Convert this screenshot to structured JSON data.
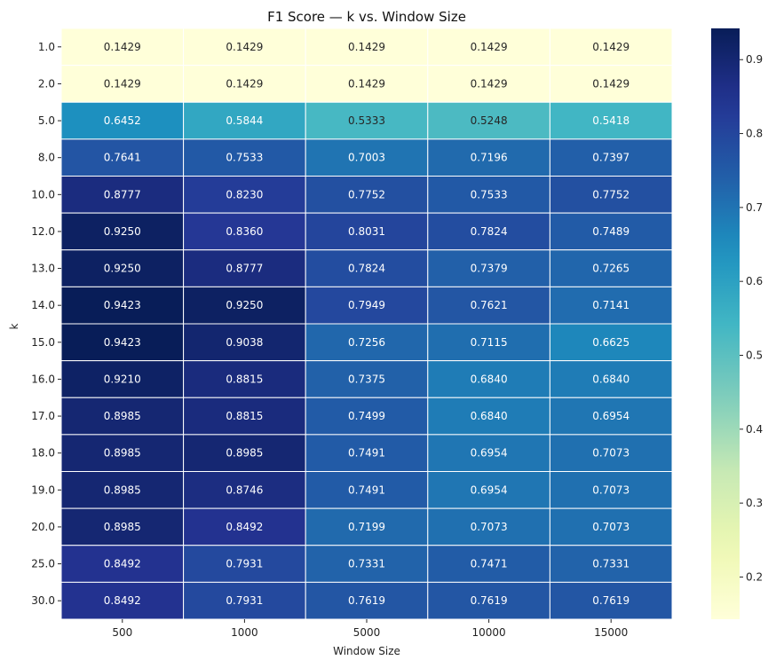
{
  "chart_data": {
    "type": "heatmap",
    "title": "F1 Score — k vs. Window Size",
    "xlabel": "Window Size",
    "ylabel": "k",
    "x": [
      "500",
      "1000",
      "5000",
      "10000",
      "15000"
    ],
    "y": [
      "1.0",
      "2.0",
      "5.0",
      "8.0",
      "10.0",
      "12.0",
      "13.0",
      "14.0",
      "15.0",
      "16.0",
      "17.0",
      "18.0",
      "19.0",
      "20.0",
      "25.0",
      "30.0"
    ],
    "values": [
      [
        0.1429,
        0.1429,
        0.1429,
        0.1429,
        0.1429
      ],
      [
        0.1429,
        0.1429,
        0.1429,
        0.1429,
        0.1429
      ],
      [
        0.6452,
        0.5844,
        0.5333,
        0.5248,
        0.5418
      ],
      [
        0.7641,
        0.7533,
        0.7003,
        0.7196,
        0.7397
      ],
      [
        0.8777,
        0.823,
        0.7752,
        0.7533,
        0.7752
      ],
      [
        0.925,
        0.836,
        0.8031,
        0.7824,
        0.7489
      ],
      [
        0.925,
        0.8777,
        0.7824,
        0.7379,
        0.7265
      ],
      [
        0.9423,
        0.925,
        0.7949,
        0.7621,
        0.7141
      ],
      [
        0.9423,
        0.9038,
        0.7256,
        0.7115,
        0.6625
      ],
      [
        0.921,
        0.8815,
        0.7375,
        0.684,
        0.684
      ],
      [
        0.8985,
        0.8815,
        0.7499,
        0.684,
        0.6954
      ],
      [
        0.8985,
        0.8985,
        0.7491,
        0.6954,
        0.7073
      ],
      [
        0.8985,
        0.8746,
        0.7491,
        0.6954,
        0.7073
      ],
      [
        0.8985,
        0.8492,
        0.7199,
        0.7073,
        0.7073
      ],
      [
        0.8492,
        0.7931,
        0.7331,
        0.7471,
        0.7331
      ],
      [
        0.8492,
        0.7931,
        0.7619,
        0.7619,
        0.7619
      ]
    ],
    "value_format": "0.0000",
    "colormap": "YlGnBu",
    "vmin": 0.1429,
    "vmax": 0.9423,
    "colorbar": {
      "ticks": [
        0.2,
        0.3,
        0.4,
        0.5,
        0.6,
        0.7,
        0.8,
        0.9
      ],
      "tick_labels": [
        "0.2",
        "0.3",
        "0.4",
        "0.5",
        "0.6",
        "0.7",
        "0.8",
        "0.9"
      ]
    }
  }
}
